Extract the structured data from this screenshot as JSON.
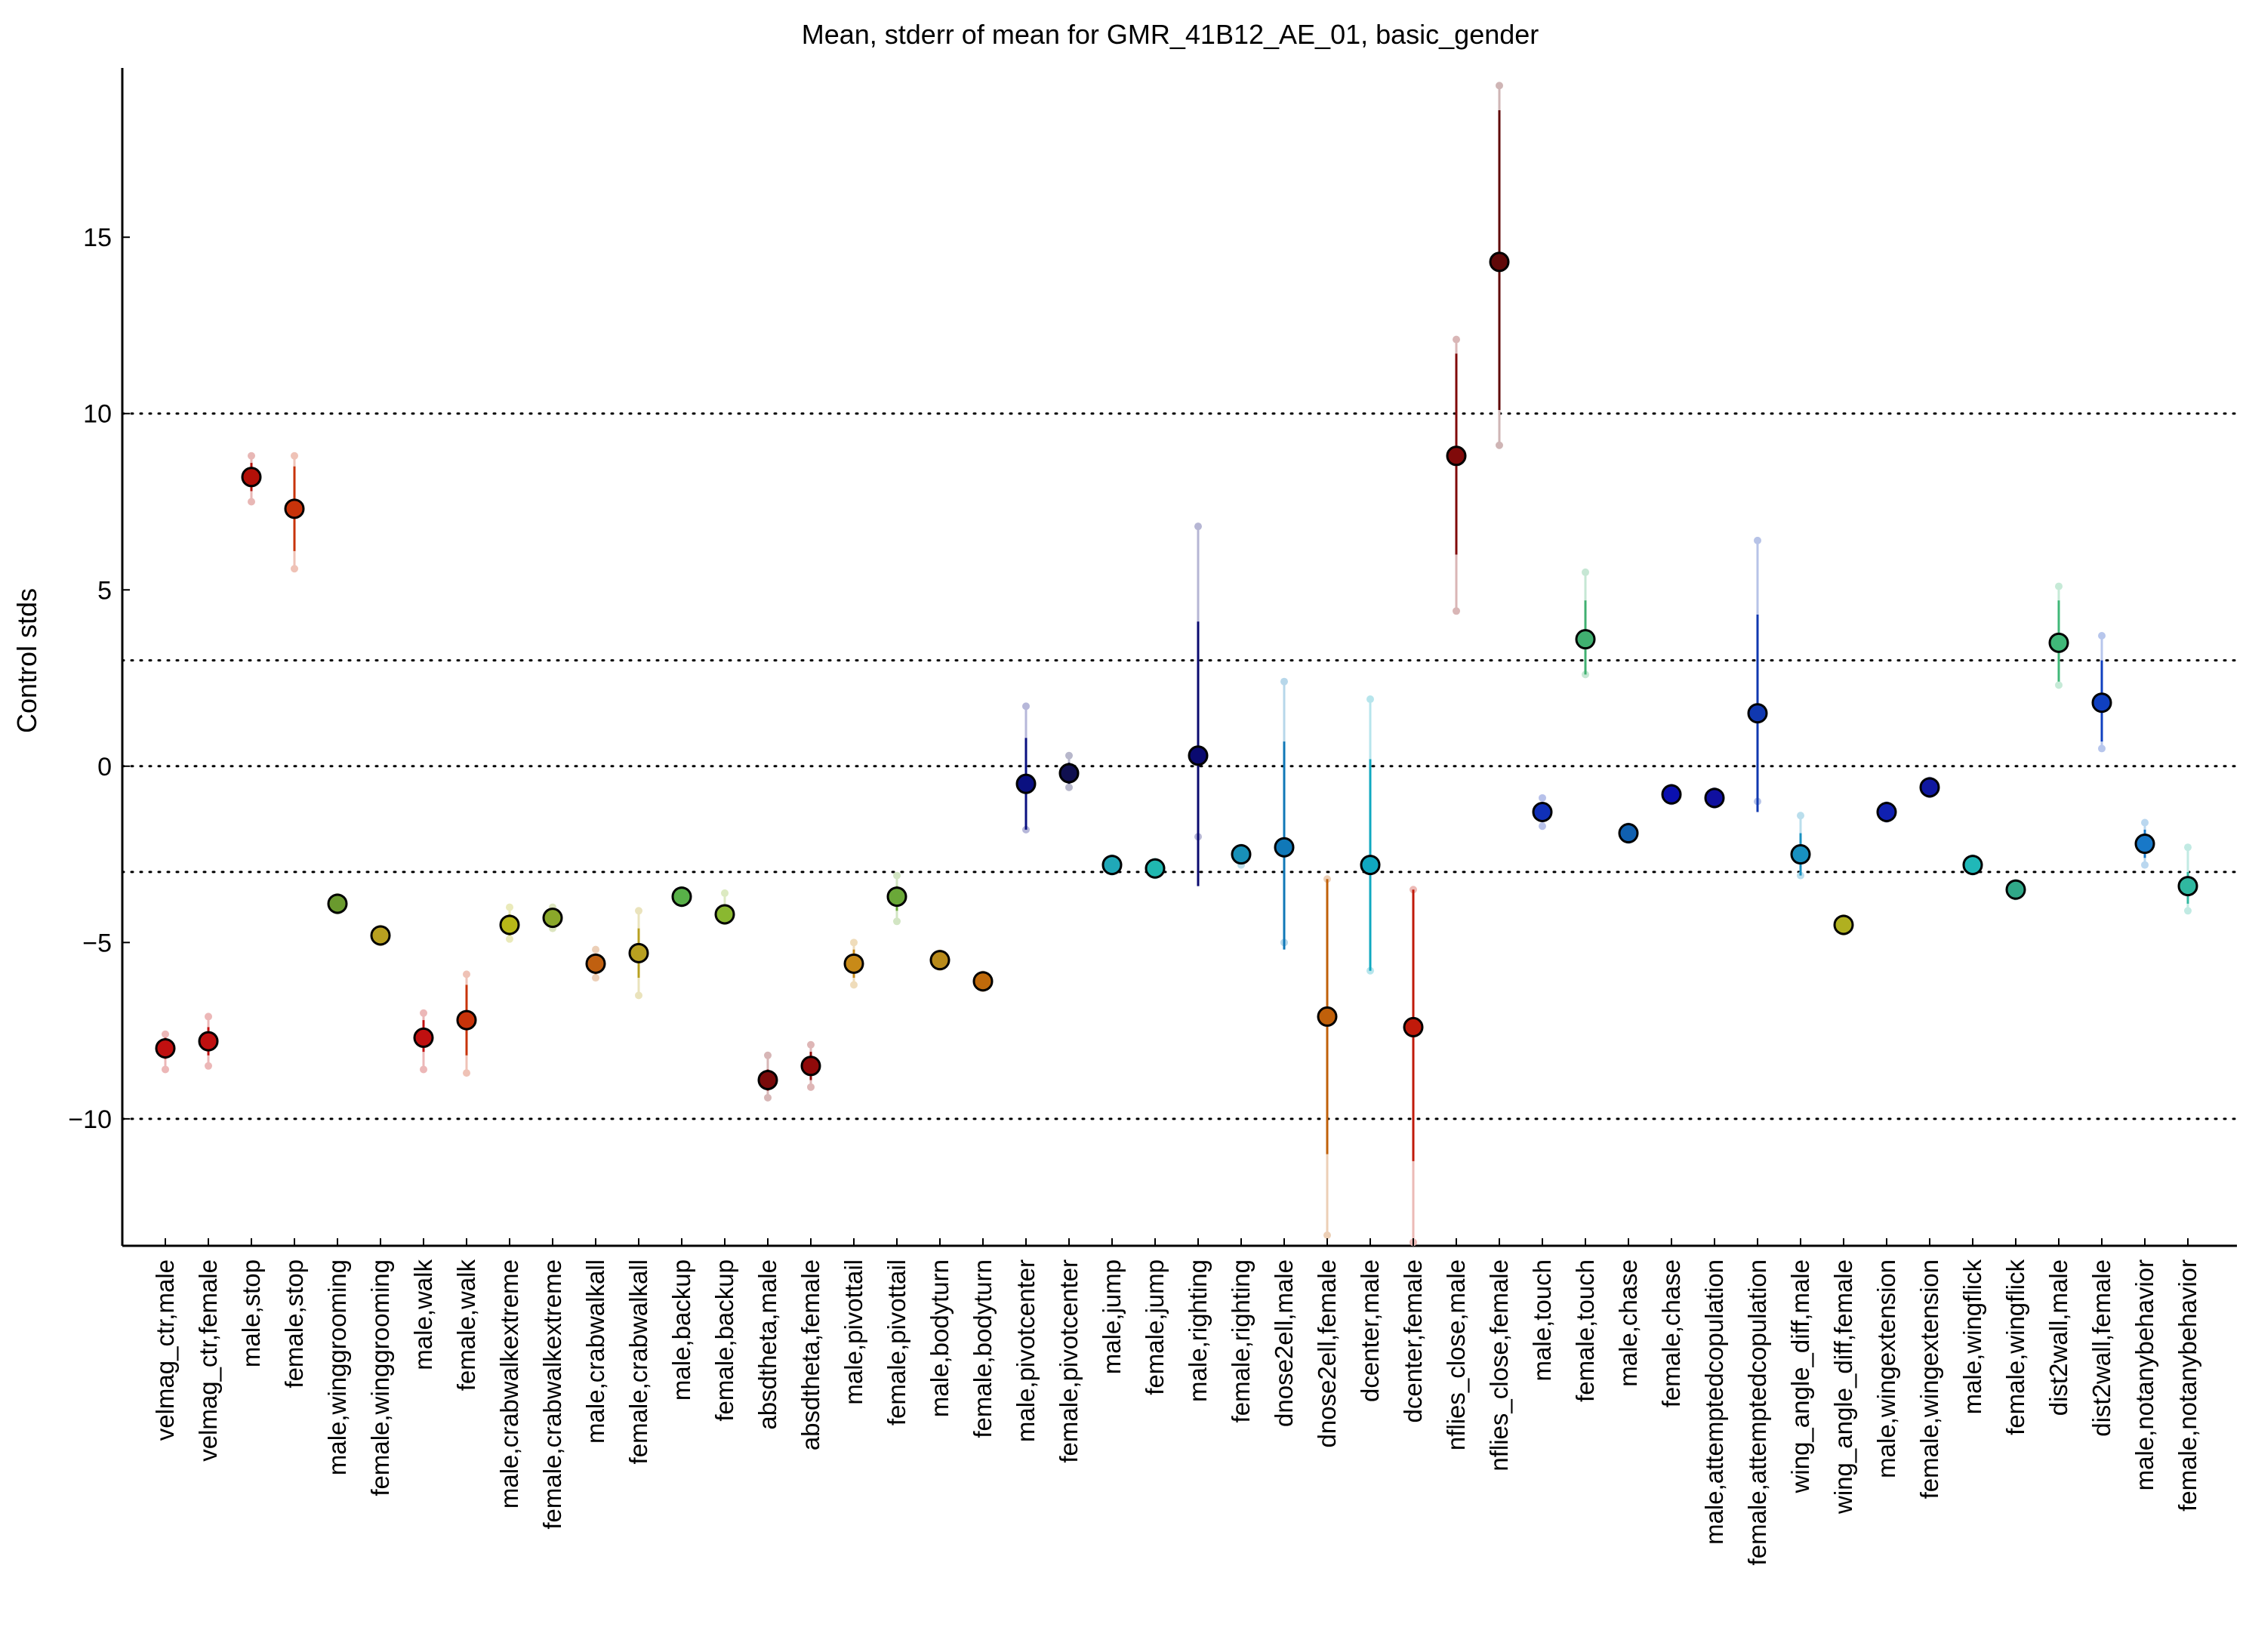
{
  "chart_data": {
    "type": "scatter",
    "title": "Mean, stderr of mean for GMR_41B12_AE_01, basic_gender",
    "xlabel": "",
    "ylabel": "Control stds",
    "ylim": [
      -13.6,
      19.8
    ],
    "yticks": [
      15,
      10,
      5,
      0,
      -5,
      -10
    ],
    "ytick_labels": [
      "15",
      "10",
      "5",
      "0",
      "−5",
      "−10"
    ],
    "hlines_dotted": [
      10,
      3,
      0,
      -3,
      -10
    ],
    "grid": false,
    "legend": "none",
    "points": [
      {
        "label": "velmag_ctr,male",
        "mean": -8.0,
        "lo": -8.3,
        "hi": -7.7,
        "outer": [
          -8.6,
          -7.6
        ],
        "color": "#c01010",
        "label_color": "#c00000"
      },
      {
        "label": "velmag_ctr,female",
        "mean": -7.8,
        "lo": -8.2,
        "hi": -7.4,
        "outer": [
          -8.5,
          -7.1
        ],
        "color": "#c01010",
        "label_color": "#c00000"
      },
      {
        "label": "male,stop",
        "mean": 8.2,
        "lo": 7.8,
        "hi": 8.6,
        "outer": [
          7.5,
          8.8
        ],
        "color": "#b31008",
        "label_color": "#b00000"
      },
      {
        "label": "female,stop",
        "mean": 7.3,
        "lo": 6.1,
        "hi": 8.5,
        "outer": [
          5.6,
          8.8
        ],
        "color": "#c8330a",
        "label_color": "#c03000"
      },
      {
        "label": "male,winggrooming",
        "mean": -3.9,
        "lo": -4.0,
        "hi": -3.8,
        "outer": [
          -4.1,
          -3.7
        ],
        "color": "#6a9a2e",
        "label_color": "#5aa020"
      },
      {
        "label": "female,winggrooming",
        "mean": -4.8,
        "lo": -4.9,
        "hi": -4.7,
        "outer": [
          -5.0,
          -4.6
        ],
        "color": "#b8a020",
        "label_color": "#a0a000"
      },
      {
        "label": "male,walk",
        "mean": -7.7,
        "lo": -8.1,
        "hi": -7.2,
        "outer": [
          -8.6,
          -7.0
        ],
        "color": "#c01010",
        "label_color": "#c00000"
      },
      {
        "label": "female,walk",
        "mean": -7.2,
        "lo": -8.2,
        "hi": -6.2,
        "outer": [
          -8.7,
          -5.9
        ],
        "color": "#c8330a",
        "label_color": "#c03000"
      },
      {
        "label": "male,crabwalkextreme",
        "mean": -4.5,
        "lo": -4.8,
        "hi": -4.2,
        "outer": [
          -4.9,
          -4.0
        ],
        "color": "#b8b818",
        "label_color": "#a0a800"
      },
      {
        "label": "female,crabwalkextreme",
        "mean": -4.3,
        "lo": -4.5,
        "hi": -4.1,
        "outer": [
          -4.6,
          -4.0
        ],
        "color": "#8aa82a",
        "label_color": "#80a020"
      },
      {
        "label": "male,crabwalkall",
        "mean": -5.6,
        "lo": -5.9,
        "hi": -5.4,
        "outer": [
          -6.0,
          -5.2
        ],
        "color": "#c06010",
        "label_color": "#b05000"
      },
      {
        "label": "female,crabwalkall",
        "mean": -5.3,
        "lo": -6.0,
        "hi": -4.6,
        "outer": [
          -6.5,
          -4.1
        ],
        "color": "#b8a020",
        "label_color": "#b09000"
      },
      {
        "label": "male,backup",
        "mean": -3.7,
        "lo": -3.8,
        "hi": -3.6,
        "outer": [
          -3.9,
          -3.5
        ],
        "color": "#58b048",
        "label_color": "#40a030"
      },
      {
        "label": "female,backup",
        "mean": -4.2,
        "lo": -4.3,
        "hi": -4.0,
        "outer": [
          -4.4,
          -3.6
        ],
        "color": "#8ab830",
        "label_color": "#80a830"
      },
      {
        "label": "absdtheta,male",
        "mean": -8.9,
        "lo": -9.2,
        "hi": -8.6,
        "outer": [
          -9.4,
          -8.2
        ],
        "color": "#7a0a0a",
        "label_color": "#700000"
      },
      {
        "label": "absdtheta,female",
        "mean": -8.5,
        "lo": -8.9,
        "hi": -8.1,
        "outer": [
          -9.1,
          -7.9
        ],
        "color": "#900a0a",
        "label_color": "#800000"
      },
      {
        "label": "male,pivottail",
        "mean": -5.6,
        "lo": -6.0,
        "hi": -5.2,
        "outer": [
          -6.2,
          -5.0
        ],
        "color": "#c88a18",
        "label_color": "#c08000"
      },
      {
        "label": "female,pivottail",
        "mean": -3.7,
        "lo": -4.1,
        "hi": -3.4,
        "outer": [
          -4.4,
          -3.1
        ],
        "color": "#6aa838",
        "label_color": "#50a030"
      },
      {
        "label": "male,bodyturn",
        "mean": -5.5,
        "lo": -5.6,
        "hi": -5.4,
        "outer": [
          -5.7,
          -5.3
        ],
        "color": "#b88a1a",
        "label_color": "#a08000"
      },
      {
        "label": "female,bodyturn",
        "mean": -6.1,
        "lo": -6.2,
        "hi": -6.0,
        "outer": [
          -6.3,
          -5.9
        ],
        "color": "#c06a0a",
        "label_color": "#b05000"
      },
      {
        "label": "male,pivotcenter",
        "mean": -0.5,
        "lo": -1.8,
        "hi": 0.8,
        "outer": [
          -1.8,
          1.7
        ],
        "color": "#0a1080",
        "label_color": "#000080"
      },
      {
        "label": "female,pivotcenter",
        "mean": -0.2,
        "lo": -0.5,
        "hi": 0.1,
        "outer": [
          -0.6,
          0.3
        ],
        "color": "#101050",
        "label_color": "#000040"
      },
      {
        "label": "male,jump",
        "mean": -2.8,
        "lo": -2.9,
        "hi": -2.7,
        "outer": [
          -3.0,
          -2.6
        ],
        "color": "#20a8b8",
        "label_color": "#00a0b0"
      },
      {
        "label": "female,jump",
        "mean": -2.9,
        "lo": -3.0,
        "hi": -2.8,
        "outer": [
          -3.1,
          -2.7
        ],
        "color": "#20b8b0",
        "label_color": "#00b0a8"
      },
      {
        "label": "male,righting",
        "mean": 0.3,
        "lo": -3.4,
        "hi": 4.1,
        "outer": [
          -2.0,
          6.8
        ],
        "color": "#0a0a70",
        "label_color": "#000070"
      },
      {
        "label": "female,righting",
        "mean": -2.5,
        "lo": -2.7,
        "hi": -2.4,
        "outer": [
          -2.8,
          -2.3
        ],
        "color": "#1890b8",
        "label_color": "#0080b0"
      },
      {
        "label": "dnose2ell,male",
        "mean": -2.3,
        "lo": -5.2,
        "hi": 0.7,
        "outer": [
          -5.0,
          2.4
        ],
        "color": "#1078b8",
        "label_color": "#0070b0"
      },
      {
        "label": "dnose2ell,female",
        "mean": -7.1,
        "lo": -11.0,
        "hi": -3.2,
        "outer": [
          -13.3,
          -3.2
        ],
        "color": "#c0600a",
        "label_color": "#c05000"
      },
      {
        "label": "dcenter,male",
        "mean": -2.8,
        "lo": -5.8,
        "hi": 0.2,
        "outer": [
          -5.8,
          1.9
        ],
        "color": "#10a8c0",
        "label_color": "#00a8c0"
      },
      {
        "label": "dcenter,female",
        "mean": -7.4,
        "lo": -11.2,
        "hi": -3.5,
        "outer": [
          -13.5,
          -3.5
        ],
        "color": "#c01a0a",
        "label_color": "#c01000"
      },
      {
        "label": "nflies_close,male",
        "mean": 8.8,
        "lo": 6.0,
        "hi": 11.7,
        "outer": [
          4.4,
          12.1
        ],
        "color": "#800a0a",
        "label_color": "#800000"
      },
      {
        "label": "nflies_close,female",
        "mean": 14.3,
        "lo": 10.1,
        "hi": 18.6,
        "outer": [
          9.1,
          19.3
        ],
        "color": "#600808",
        "label_color": "#600000"
      },
      {
        "label": "male,touch",
        "mean": -1.3,
        "lo": -1.5,
        "hi": -1.1,
        "outer": [
          -1.7,
          -0.9
        ],
        "color": "#1030b8",
        "label_color": "#0020c0"
      },
      {
        "label": "female,touch",
        "mean": 3.6,
        "lo": 2.6,
        "hi": 4.7,
        "outer": [
          2.6,
          5.5
        ],
        "color": "#40b070",
        "label_color": "#30b060"
      },
      {
        "label": "male,chase",
        "mean": -1.9,
        "lo": -2.0,
        "hi": -1.8,
        "outer": [
          -2.1,
          -1.7
        ],
        "color": "#1060b0",
        "label_color": "#0050b0"
      },
      {
        "label": "female,chase",
        "mean": -0.8,
        "lo": -0.9,
        "hi": -0.7,
        "outer": [
          -1.0,
          -0.6
        ],
        "color": "#0a10b0",
        "label_color": "#0000a0"
      },
      {
        "label": "male,attemptedcopulation",
        "mean": -0.9,
        "lo": -1.0,
        "hi": -0.8,
        "outer": [
          -1.1,
          -0.7
        ],
        "color": "#1010a0",
        "label_color": "#000090"
      },
      {
        "label": "female,attemptedcopulation",
        "mean": 1.5,
        "lo": -1.3,
        "hi": 4.3,
        "outer": [
          -1.0,
          6.4
        ],
        "color": "#1038b0",
        "label_color": "#0030a0"
      },
      {
        "label": "wing_angle_diff,male",
        "mean": -2.5,
        "lo": -3.1,
        "hi": -1.9,
        "outer": [
          -3.1,
          -1.4
        ],
        "color": "#1890c0",
        "label_color": "#0080c0"
      },
      {
        "label": "wing_angle_diff,female",
        "mean": -4.5,
        "lo": -4.6,
        "hi": -4.4,
        "outer": [
          -4.7,
          -4.3
        ],
        "color": "#b0b020",
        "label_color": "#a0b000"
      },
      {
        "label": "male,wingextension",
        "mean": -1.3,
        "lo": -1.4,
        "hi": -1.2,
        "outer": [
          -1.5,
          -1.1
        ],
        "color": "#1020b0",
        "label_color": "#0010a8"
      },
      {
        "label": "female,wingextension",
        "mean": -0.6,
        "lo": -0.7,
        "hi": -0.5,
        "outer": [
          -0.8,
          -0.4
        ],
        "color": "#1018a0",
        "label_color": "#000090"
      },
      {
        "label": "male,wingflick",
        "mean": -2.8,
        "lo": -2.9,
        "hi": -2.7,
        "outer": [
          -3.0,
          -2.6
        ],
        "color": "#20b8b8",
        "label_color": "#00b8b8"
      },
      {
        "label": "female,wingflick",
        "mean": -3.5,
        "lo": -3.6,
        "hi": -3.4,
        "outer": [
          -3.7,
          -3.3
        ],
        "color": "#30a888",
        "label_color": "#20b090"
      },
      {
        "label": "dist2wall,male",
        "mean": 3.5,
        "lo": 2.4,
        "hi": 4.7,
        "outer": [
          2.3,
          5.1
        ],
        "color": "#40b878",
        "label_color": "#30b060"
      },
      {
        "label": "dist2wall,female",
        "mean": 1.8,
        "lo": 0.7,
        "hi": 3.0,
        "outer": [
          0.5,
          3.7
        ],
        "color": "#1040c0",
        "label_color": "#0030c0"
      },
      {
        "label": "male,notanybehavior",
        "mean": -2.2,
        "lo": -2.6,
        "hi": -1.8,
        "outer": [
          -2.8,
          -1.6
        ],
        "color": "#1878c8",
        "label_color": "#0070c0"
      },
      {
        "label": "female,notanybehavior",
        "mean": -3.4,
        "lo": -3.9,
        "hi": -3.0,
        "outer": [
          -4.1,
          -2.3
        ],
        "color": "#30b8a0",
        "label_color": "#20b8a0"
      }
    ]
  }
}
